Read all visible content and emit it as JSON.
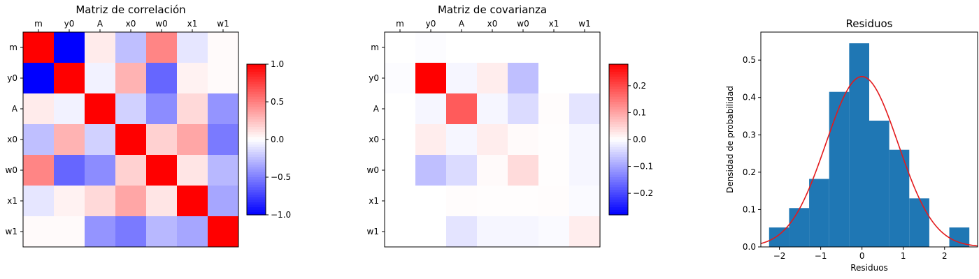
{
  "chart_data": [
    {
      "type": "heatmap",
      "title": "Matriz de correlación",
      "row_labels": [
        "m",
        "y0",
        "A",
        "x0",
        "w0",
        "x1",
        "w1"
      ],
      "col_labels": [
        "m",
        "y0",
        "A",
        "x0",
        "w0",
        "x1",
        "w1"
      ],
      "values": [
        [
          1.0,
          -1.0,
          0.08,
          -0.25,
          0.48,
          -0.1,
          0.02
        ],
        [
          -1.0,
          1.0,
          -0.05,
          0.3,
          -0.6,
          0.05,
          0.02
        ],
        [
          0.08,
          -0.05,
          1.0,
          -0.18,
          -0.45,
          0.15,
          -0.42
        ],
        [
          -0.25,
          0.3,
          -0.18,
          1.0,
          0.18,
          0.35,
          -0.52
        ],
        [
          0.48,
          -0.6,
          -0.45,
          0.18,
          1.0,
          0.1,
          -0.28
        ],
        [
          -0.1,
          0.05,
          0.15,
          0.35,
          0.1,
          1.0,
          -0.35
        ],
        [
          0.02,
          0.02,
          -0.42,
          -0.52,
          -0.28,
          -0.35,
          1.0
        ]
      ],
      "colormap": "bwr",
      "vmin": -1.0,
      "vmax": 1.0,
      "colorbar_ticks": [
        -1.0,
        -0.5,
        0.0,
        0.5,
        1.0
      ],
      "colorbar_tick_labels": [
        "−1.0",
        "−0.5",
        "0.0",
        "0.5",
        "1.0"
      ]
    },
    {
      "type": "heatmap",
      "title": "Matriz de covarianza",
      "row_labels": [
        "m",
        "y0",
        "A",
        "x0",
        "w0",
        "x1",
        "w1"
      ],
      "col_labels": [
        "m",
        "y0",
        "A",
        "x0",
        "w0",
        "x1",
        "w1"
      ],
      "values": [
        [
          0.0,
          -0.003,
          0.0,
          0.0,
          0.0,
          0.0,
          0.0
        ],
        [
          -0.003,
          0.28,
          -0.01,
          0.02,
          -0.07,
          0.0,
          0.0
        ],
        [
          0.0,
          -0.01,
          0.18,
          -0.01,
          -0.04,
          0.003,
          -0.03
        ],
        [
          0.0,
          0.02,
          -0.01,
          0.02,
          0.005,
          0.002,
          -0.01
        ],
        [
          0.0,
          -0.07,
          -0.04,
          0.005,
          0.04,
          0.002,
          -0.01
        ],
        [
          0.0,
          0.0,
          0.003,
          0.002,
          0.002,
          0.003,
          -0.005
        ],
        [
          0.0,
          0.0,
          -0.03,
          -0.01,
          -0.01,
          -0.005,
          0.02
        ]
      ],
      "colormap": "bwr",
      "vmin": -0.28,
      "vmax": 0.28,
      "colorbar_ticks": [
        -0.2,
        -0.1,
        0.0,
        0.1,
        0.2
      ],
      "colorbar_tick_labels": [
        "−0.2",
        "−0.1",
        "0.0",
        "0.1",
        "0.2"
      ]
    },
    {
      "type": "bar",
      "title": "Residuos",
      "xlabel": "Residuos",
      "ylabel": "Densidad de probabilidad",
      "bin_edges": [
        -2.25,
        -1.765,
        -1.28,
        -0.795,
        -0.31,
        0.175,
        0.66,
        1.145,
        1.63,
        2.115,
        2.6
      ],
      "values": [
        0.052,
        0.104,
        0.182,
        0.415,
        0.545,
        0.338,
        0.26,
        0.13,
        0.0,
        0.052
      ],
      "bar_color": "#1f77b4",
      "curve": {
        "type": "normal_pdf",
        "mean": 0.0,
        "std": 0.875,
        "color": "#e31a1c"
      },
      "xlim": [
        -2.45,
        2.8
      ],
      "ylim": [
        0.0,
        0.575
      ],
      "x_ticks": [
        -2,
        -1,
        0,
        1,
        2
      ],
      "x_tick_labels": [
        "−2",
        "−1",
        "0",
        "1",
        "2"
      ],
      "y_ticks": [
        0.0,
        0.1,
        0.2,
        0.3,
        0.4,
        0.5
      ],
      "y_tick_labels": [
        "0.0",
        "0.1",
        "0.2",
        "0.3",
        "0.4",
        "0.5"
      ]
    }
  ]
}
